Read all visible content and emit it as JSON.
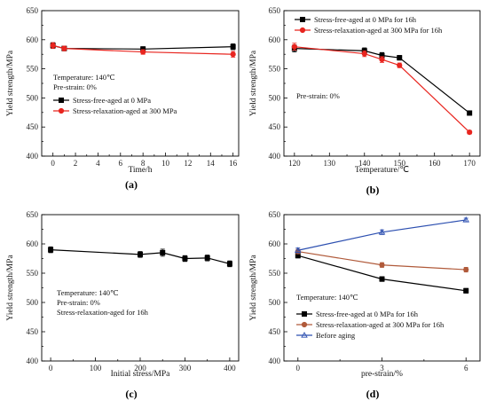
{
  "chart_data": [
    {
      "type": "line",
      "panel_label": "(a)",
      "xlabel": "Time/h",
      "ylabel": "Yield strength/MPa",
      "xlim": [
        -1,
        16.5
      ],
      "ylim": [
        400,
        650
      ],
      "xticks": [
        0,
        2,
        4,
        6,
        8,
        10,
        12,
        14,
        16
      ],
      "yticks": [
        400,
        450,
        500,
        550,
        600,
        650
      ],
      "annotations": [
        "Temperature: 140℃",
        "Pre-strain: 0%"
      ],
      "legend_position": "middle-left",
      "series": [
        {
          "name": "Stress-free-aged at 0 MPa",
          "color": "#000000",
          "marker": "square",
          "x": [
            0,
            1,
            8,
            16
          ],
          "y": [
            590,
            585,
            584,
            588
          ],
          "err": [
            5,
            4,
            4,
            5
          ]
        },
        {
          "name": "Stress-relaxation-aged at 300 MPa",
          "color": "#e8251f",
          "marker": "circle",
          "x": [
            0,
            1,
            8,
            16
          ],
          "y": [
            590,
            585,
            579,
            575
          ],
          "err": [
            5,
            4,
            4,
            5
          ]
        }
      ]
    },
    {
      "type": "line",
      "panel_label": "(b)",
      "xlabel": "Temperature/℃",
      "ylabel": "Yield strength/MPa",
      "xlim": [
        117,
        173
      ],
      "ylim": [
        400,
        650
      ],
      "xticks": [
        120,
        130,
        140,
        150,
        160,
        170
      ],
      "yticks": [
        400,
        450,
        500,
        550,
        600,
        650
      ],
      "annotations": [
        "Pre-strain: 0%"
      ],
      "legend_position": "top",
      "series": [
        {
          "name": "Stress-free-aged at 0 MPa  for 16h",
          "color": "#000000",
          "marker": "square",
          "x": [
            120,
            140,
            145,
            150,
            170
          ],
          "y": [
            585,
            581,
            573,
            569,
            474
          ],
          "err": [
            6,
            5,
            5,
            4,
            3
          ]
        },
        {
          "name": "Stress-relaxation-aged at 300 MPa  for 16h",
          "color": "#e8251f",
          "marker": "circle",
          "x": [
            120,
            140,
            145,
            150,
            170
          ],
          "y": [
            588,
            576,
            566,
            556,
            441
          ],
          "err": [
            6,
            5,
            5,
            4,
            3
          ]
        }
      ]
    },
    {
      "type": "line",
      "panel_label": "(c)",
      "xlabel": "Initial stress/MPa",
      "ylabel": "Yield strength/MPa",
      "xlim": [
        -20,
        420
      ],
      "ylim": [
        400,
        650
      ],
      "xticks": [
        0,
        100,
        200,
        300,
        400
      ],
      "yticks": [
        400,
        450,
        500,
        550,
        600,
        650
      ],
      "annotations": [
        "Temperature: 140℃",
        "Pre-strain: 0%",
        "Stress-relaxation-aged for 16h"
      ],
      "legend_position": "none",
      "series": [
        {
          "name": "",
          "color": "#000000",
          "marker": "square",
          "x": [
            0,
            200,
            250,
            300,
            350,
            400
          ],
          "y": [
            590,
            582,
            585,
            575,
            576,
            566
          ],
          "err": [
            5,
            5,
            6,
            5,
            5,
            5
          ]
        }
      ]
    },
    {
      "type": "line",
      "panel_label": "(d)",
      "xlabel": "pre-strain/%",
      "ylabel": "Yield strength/MPa",
      "xlim": [
        -0.5,
        6.5
      ],
      "ylim": [
        400,
        650
      ],
      "xticks": [
        0,
        3,
        6
      ],
      "yticks": [
        400,
        450,
        500,
        550,
        600,
        650
      ],
      "annotations": [
        "Temperature: 140℃"
      ],
      "legend_position": "bottom-left",
      "series": [
        {
          "name": "Stress-free-aged at 0 MPa for 16h",
          "color": "#000000",
          "marker": "square",
          "x": [
            0,
            3,
            6
          ],
          "y": [
            580,
            540,
            520
          ],
          "err": [
            4,
            4,
            4
          ]
        },
        {
          "name": "Stress-relaxation-aged at 300 MPa for 16h",
          "color": "#b05a3a",
          "marker": "circle",
          "x": [
            0,
            3,
            6
          ],
          "y": [
            587,
            564,
            556
          ],
          "err": [
            4,
            4,
            4
          ]
        },
        {
          "name": "Before aging",
          "color": "#2c4fb0",
          "marker": "triangle",
          "x": [
            0,
            3,
            6
          ],
          "y": [
            589,
            620,
            641
          ],
          "err": [
            4,
            4,
            3
          ]
        }
      ]
    }
  ]
}
